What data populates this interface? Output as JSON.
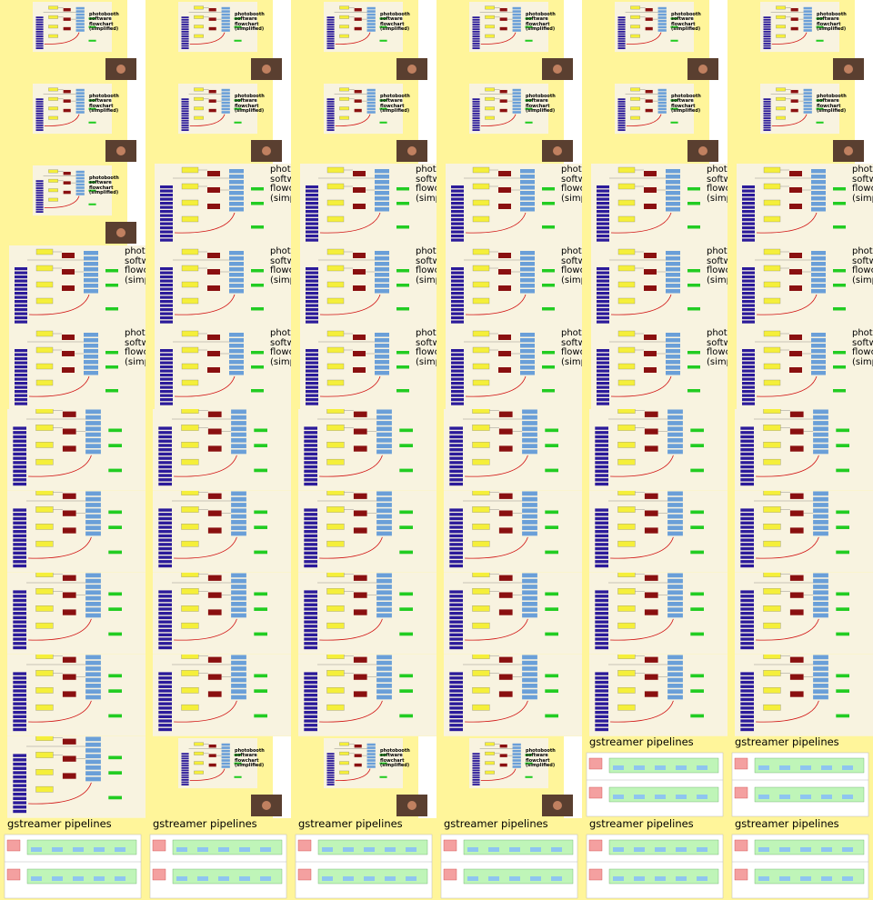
{
  "frames": [
    {
      "kind": "slide",
      "title": "photobooth software flowchart (simplified)"
    },
    {
      "kind": "slide",
      "title": "photobooth software flowchart (simplified)"
    },
    {
      "kind": "slide",
      "title": "photobooth software flowchart (simplified)"
    },
    {
      "kind": "slide",
      "title": "photobooth software flowchart (simplified)"
    },
    {
      "kind": "slide",
      "title": "photobooth software flowchart (simplified)"
    },
    {
      "kind": "slide",
      "title": "photobooth software flowchart (simplified)"
    },
    {
      "kind": "slide",
      "title": "photobooth software flowchart (simplified)"
    },
    {
      "kind": "slide",
      "title": "photobooth software flowchart (simplified)"
    },
    {
      "kind": "slide",
      "title": "photobooth software flowchart (simplified)"
    },
    {
      "kind": "slide",
      "title": "photobooth software flowchart (simplified)"
    },
    {
      "kind": "slide",
      "title": "photobooth software flowchart (simplified)"
    },
    {
      "kind": "slide",
      "title": "photobooth software flowchart (simplified)"
    },
    {
      "kind": "slide",
      "title": "photobooth software flowchart (simplified)"
    },
    {
      "kind": "zoom",
      "title": "photobooth software flowchart (simplified)"
    },
    {
      "kind": "zoom",
      "title": "photobooth software flowchart (simplified)"
    },
    {
      "kind": "zoom",
      "title": "photobooth software flowchart (simplified)"
    },
    {
      "kind": "zoom",
      "title": "photobooth software flowchart (simplified)"
    },
    {
      "kind": "zoom",
      "title": "photobooth software flowchart (simplified)"
    },
    {
      "kind": "zoom",
      "title": "photobooth software flowchart (simplified)"
    },
    {
      "kind": "zoom",
      "title": "photobooth software flowchart (simplified)"
    },
    {
      "kind": "zoom",
      "title": "photobooth software flowchart (simplified)"
    },
    {
      "kind": "zoom",
      "title": "photobooth software flowchart (simplified)"
    },
    {
      "kind": "zoom",
      "title": "photobooth software flowchart (simplified)"
    },
    {
      "kind": "zoom",
      "title": "photobooth software flowchart (simplified)"
    },
    {
      "kind": "zoom",
      "title": "photobooth software flowchart (simplified)"
    },
    {
      "kind": "zoom",
      "title": "photobooth software flowchart (simplified)"
    },
    {
      "kind": "zoom",
      "title": "photobooth software flowchart (simplified)"
    },
    {
      "kind": "zoom",
      "title": "photobooth software flowchart (simplified)"
    },
    {
      "kind": "zoom",
      "title": "photobooth software flowchart (simplified)"
    },
    {
      "kind": "zoom",
      "title": "photobooth software flowchart (simplified)"
    },
    {
      "kind": "detail"
    },
    {
      "kind": "detail"
    },
    {
      "kind": "detail"
    },
    {
      "kind": "detail"
    },
    {
      "kind": "detail"
    },
    {
      "kind": "detail"
    },
    {
      "kind": "detail"
    },
    {
      "kind": "detail"
    },
    {
      "kind": "detail"
    },
    {
      "kind": "detail"
    },
    {
      "kind": "detail"
    },
    {
      "kind": "detail"
    },
    {
      "kind": "detail"
    },
    {
      "kind": "detail"
    },
    {
      "kind": "detail"
    },
    {
      "kind": "detail"
    },
    {
      "kind": "detail"
    },
    {
      "kind": "detail"
    },
    {
      "kind": "detail"
    },
    {
      "kind": "detail"
    },
    {
      "kind": "detail"
    },
    {
      "kind": "detail"
    },
    {
      "kind": "detail"
    },
    {
      "kind": "detail"
    },
    {
      "kind": "detail"
    },
    {
      "kind": "slide",
      "title": "photobooth software flowchart (simplified)"
    },
    {
      "kind": "slide",
      "title": "photobooth software flowchart (simplified)"
    },
    {
      "kind": "slide",
      "title": "photobooth software flowchart (simplified)"
    },
    {
      "kind": "gstreamer",
      "title": "gstreamer pipelines"
    },
    {
      "kind": "gstreamer",
      "title": "gstreamer pipelines"
    },
    {
      "kind": "gstreamer",
      "title": "gstreamer pipelines"
    },
    {
      "kind": "gstreamer",
      "title": "gstreamer pipelines"
    },
    {
      "kind": "gstreamer",
      "title": "gstreamer pipelines"
    },
    {
      "kind": "gstreamer",
      "title": "gstreamer pipelines"
    },
    {
      "kind": "gstreamer",
      "title": "gstreamer pipelines"
    },
    {
      "kind": "gstreamer",
      "title": "gstreamer pipelines"
    }
  ]
}
